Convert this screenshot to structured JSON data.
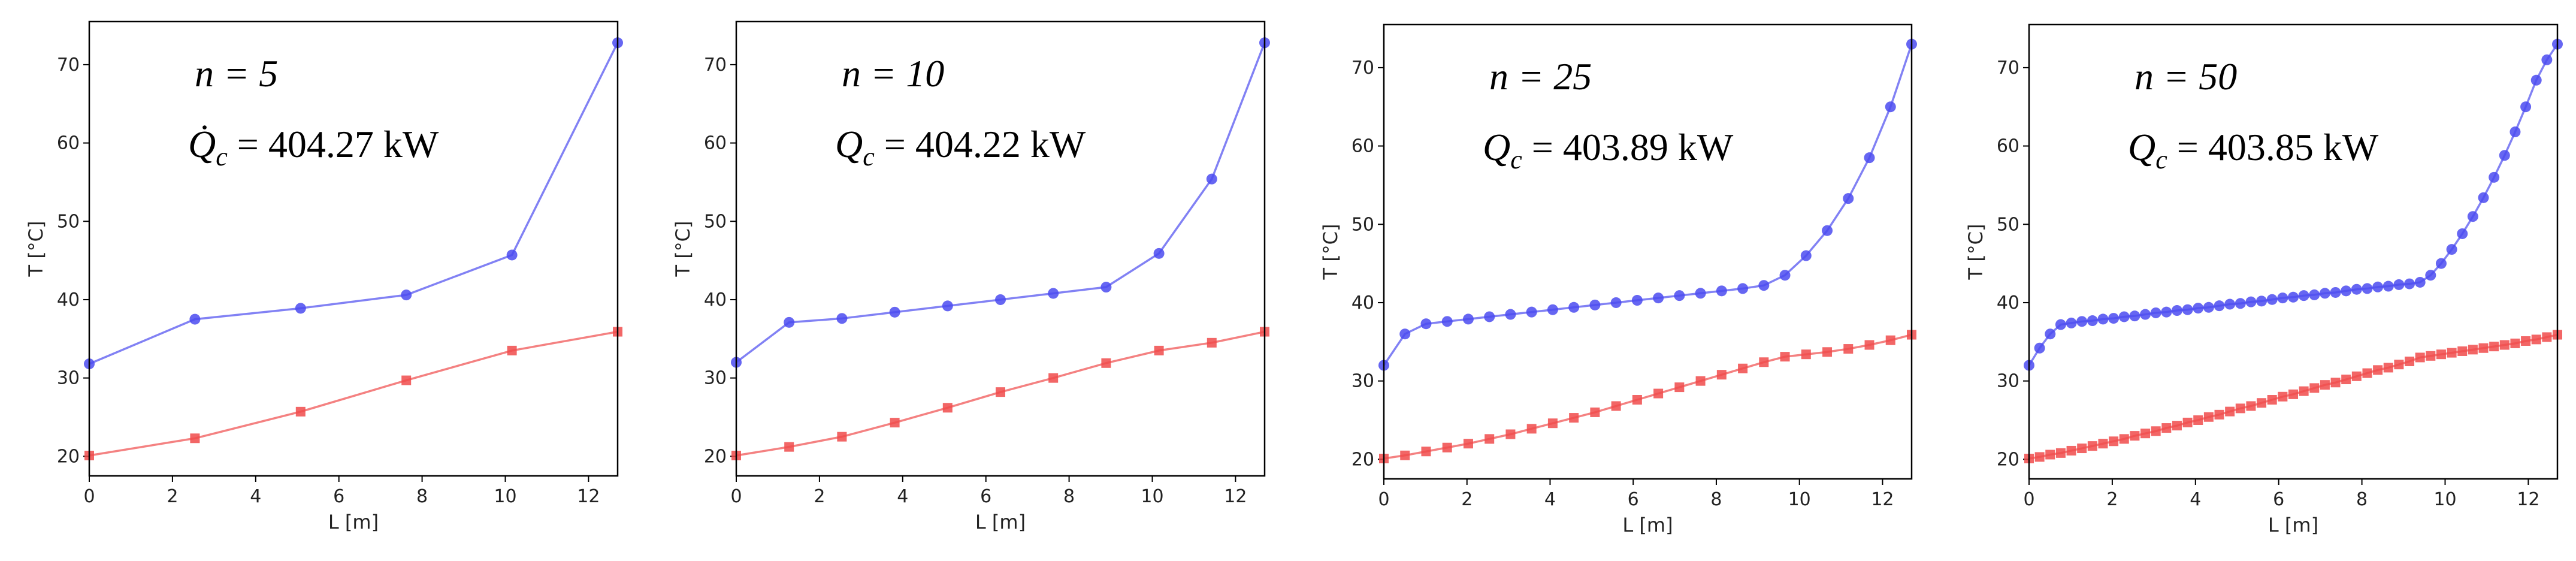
{
  "chart_data": [
    {
      "type": "line",
      "xlabel": "L [m]",
      "ylabel": "T [°C]",
      "annotations": [
        {
          "text": "n = 5"
        },
        {
          "symbol": "Q̇",
          "subscript": "c",
          "text": " = 404.27 kW"
        }
      ],
      "x": [
        0,
        2.54,
        5.08,
        7.62,
        10.16,
        12.7
      ],
      "series": [
        {
          "color": "#4b4bf0",
          "marker": "circle",
          "values": [
            31.8,
            37.5,
            38.9,
            40.6,
            45.7,
            72.8
          ]
        },
        {
          "color": "#f04b4b",
          "marker": "square",
          "values": [
            20.1,
            22.3,
            25.7,
            29.7,
            33.5,
            35.9
          ]
        }
      ],
      "xlim": [
        0,
        12.7
      ],
      "ylim": [
        17.5,
        75.5
      ],
      "xticks": [
        0,
        2,
        4,
        6,
        8,
        10,
        12
      ],
      "yticks": [
        20,
        30,
        40,
        50,
        60,
        70
      ]
    },
    {
      "type": "line",
      "xlabel": "L [m]",
      "ylabel": "T [°C]",
      "annotations": [
        {
          "text": "n = 10"
        },
        {
          "symbol": "Q",
          "subscript": "c",
          "text": " = 404.22 kW"
        }
      ],
      "x": [
        0,
        1.27,
        2.54,
        3.81,
        5.08,
        6.35,
        7.62,
        8.89,
        10.16,
        11.43,
        12.7
      ],
      "series": [
        {
          "color": "#4b4bf0",
          "marker": "circle",
          "values": [
            32,
            37.1,
            37.6,
            38.4,
            39.2,
            40,
            40.8,
            41.6,
            45.9,
            55.4,
            72.8
          ]
        },
        {
          "color": "#f04b4b",
          "marker": "square",
          "values": [
            20.1,
            21.2,
            22.5,
            24.3,
            26.2,
            28.2,
            30,
            31.9,
            33.5,
            34.5,
            35.9
          ]
        }
      ],
      "xlim": [
        0,
        12.7
      ],
      "ylim": [
        17.5,
        75.5
      ],
      "xticks": [
        0,
        2,
        4,
        6,
        8,
        10,
        12
      ],
      "yticks": [
        20,
        30,
        40,
        50,
        60,
        70
      ]
    },
    {
      "type": "line",
      "xlabel": "L [m]",
      "ylabel": "T [°C]",
      "annotations": [
        {
          "text": "n = 25"
        },
        {
          "symbol": "Q",
          "subscript": "c",
          "text": " = 403.89 kW"
        }
      ],
      "x": [
        0,
        0.508,
        1.016,
        1.524,
        2.032,
        2.54,
        3.048,
        3.556,
        4.064,
        4.572,
        5.08,
        5.588,
        6.096,
        6.604,
        7.112,
        7.62,
        8.128,
        8.636,
        9.144,
        9.652,
        10.16,
        10.668,
        11.176,
        11.684,
        12.192,
        12.7
      ],
      "series": [
        {
          "color": "#4b4bf0",
          "marker": "circle",
          "values": [
            32,
            36,
            37.3,
            37.6,
            37.9,
            38.2,
            38.5,
            38.8,
            39.1,
            39.4,
            39.7,
            40.0,
            40.3,
            40.6,
            40.9,
            41.2,
            41.5,
            41.8,
            42.2,
            43.5,
            46.0,
            49.2,
            53.3,
            58.5,
            65.0,
            73.0
          ]
        },
        {
          "color": "#f04b4b",
          "marker": "square",
          "values": [
            20.1,
            20.5,
            21,
            21.5,
            22,
            22.6,
            23.2,
            23.9,
            24.6,
            25.3,
            26,
            26.8,
            27.6,
            28.4,
            29.2,
            30,
            30.8,
            31.6,
            32.4,
            33.1,
            33.4,
            33.7,
            34.1,
            34.6,
            35.2,
            35.9
          ]
        }
      ],
      "xlim": [
        0,
        12.7
      ],
      "ylim": [
        17.5,
        75.5
      ],
      "xticks": [
        0,
        2,
        4,
        6,
        8,
        10,
        12
      ],
      "yticks": [
        20,
        30,
        40,
        50,
        60,
        70
      ]
    },
    {
      "type": "line",
      "xlabel": "L [m]",
      "ylabel": "T [°C]",
      "annotations": [
        {
          "text": "n = 50"
        },
        {
          "symbol": "Q",
          "subscript": "c",
          "text": " = 403.85 kW"
        }
      ],
      "x": [
        0,
        0.254,
        0.508,
        0.762,
        1.016,
        1.27,
        1.524,
        1.778,
        2.032,
        2.286,
        2.54,
        2.794,
        3.048,
        3.302,
        3.556,
        3.81,
        4.064,
        4.318,
        4.572,
        4.826,
        5.08,
        5.334,
        5.588,
        5.842,
        6.096,
        6.35,
        6.604,
        6.858,
        7.112,
        7.366,
        7.62,
        7.874,
        8.128,
        8.382,
        8.636,
        8.89,
        9.144,
        9.398,
        9.652,
        9.906,
        10.16,
        10.414,
        10.668,
        10.922,
        11.176,
        11.43,
        11.684,
        11.938,
        12.192,
        12.446,
        12.7
      ],
      "series": [
        {
          "color": "#4b4bf0",
          "marker": "circle",
          "values": [
            32,
            34.2,
            36,
            37.2,
            37.4,
            37.6,
            37.7,
            37.9,
            38.0,
            38.2,
            38.3,
            38.5,
            38.7,
            38.8,
            39.0,
            39.1,
            39.3,
            39.4,
            39.6,
            39.8,
            39.9,
            40.1,
            40.2,
            40.4,
            40.6,
            40.7,
            40.9,
            41.0,
            41.2,
            41.3,
            41.5,
            41.7,
            41.8,
            42.0,
            42.1,
            42.3,
            42.4,
            42.6,
            43.5,
            45.0,
            46.8,
            48.8,
            51.0,
            53.4,
            56.0,
            58.8,
            61.8,
            65.0,
            68.4,
            71.0,
            73.0
          ]
        },
        {
          "color": "#f04b4b",
          "marker": "square",
          "values": [
            20.1,
            20.3,
            20.6,
            20.8,
            21.1,
            21.4,
            21.7,
            22.0,
            22.3,
            22.6,
            23.0,
            23.3,
            23.6,
            24.0,
            24.3,
            24.7,
            25.0,
            25.4,
            25.7,
            26.1,
            26.5,
            26.8,
            27.2,
            27.6,
            28.0,
            28.3,
            28.7,
            29.1,
            29.5,
            29.8,
            30.2,
            30.6,
            31.0,
            31.4,
            31.7,
            32.1,
            32.5,
            33.0,
            33.2,
            33.4,
            33.6,
            33.8,
            34.0,
            34.2,
            34.4,
            34.6,
            34.8,
            35.1,
            35.3,
            35.6,
            35.9
          ]
        }
      ],
      "xlim": [
        0,
        12.7
      ],
      "ylim": [
        17.5,
        75.5
      ],
      "xticks": [
        0,
        2,
        4,
        6,
        8,
        10,
        12
      ],
      "yticks": [
        20,
        30,
        40,
        50,
        60,
        70
      ]
    }
  ]
}
